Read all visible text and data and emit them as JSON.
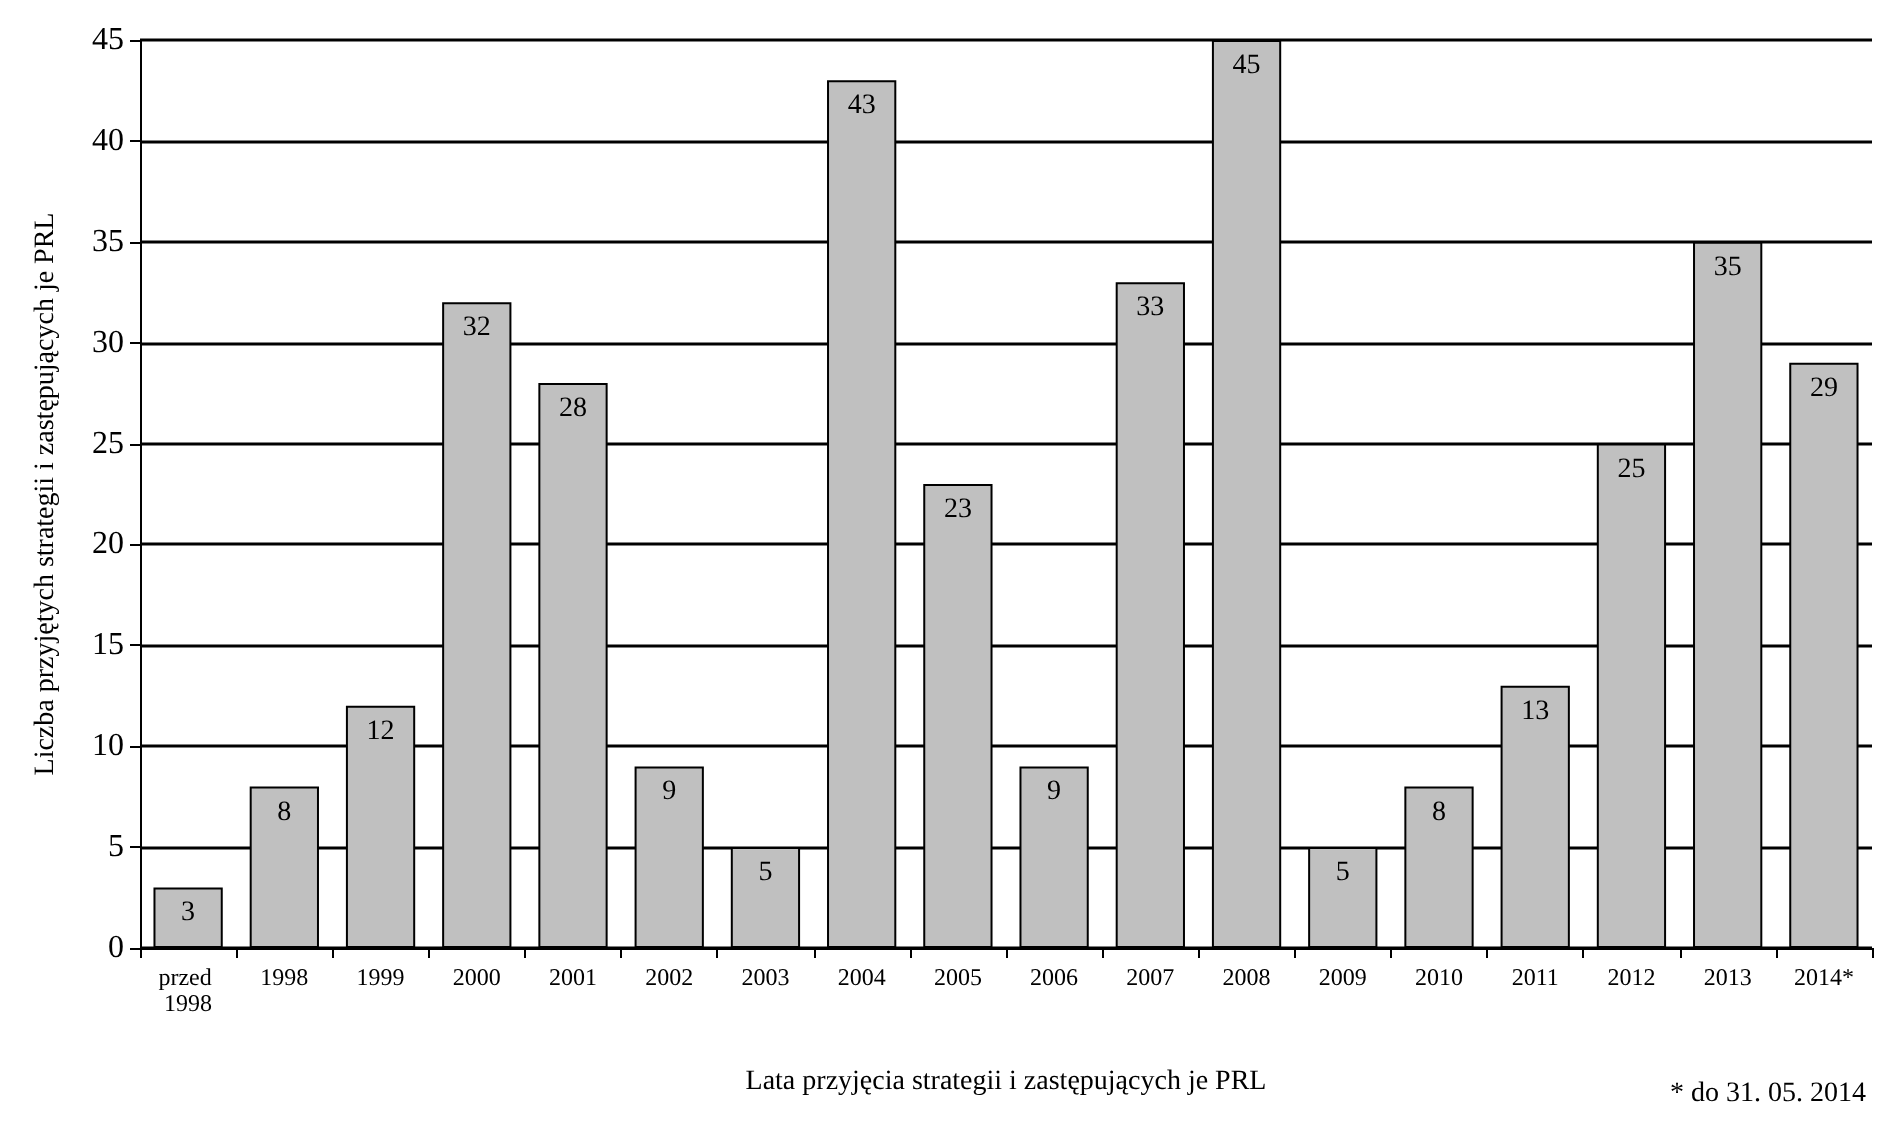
{
  "chart_data": {
    "type": "bar",
    "xlabel": "Lata przyjęcia strategii i zastępujących je PRL",
    "ylabel": "Liczba przyjętych strategii i zastępujących je PRL",
    "categories": [
      "przed 1998",
      "1998",
      "1999",
      "2000",
      "2001",
      "2002",
      "2003",
      "2004",
      "2005",
      "2006",
      "2007",
      "2008",
      "2009",
      "2010",
      "2011",
      "2012",
      "2013",
      "2014*"
    ],
    "values": [
      3,
      8,
      12,
      32,
      28,
      9,
      5,
      43,
      23,
      9,
      33,
      45,
      5,
      8,
      13,
      25,
      35,
      29
    ],
    "color": "#c0c0c0",
    "ylim": [
      0,
      45
    ],
    "yticks": [
      0,
      5,
      10,
      15,
      20,
      25,
      30,
      35,
      40,
      45
    ],
    "grid": "y",
    "data_labels": true,
    "annotations": [
      "* do 31. 05. 2014"
    ]
  }
}
